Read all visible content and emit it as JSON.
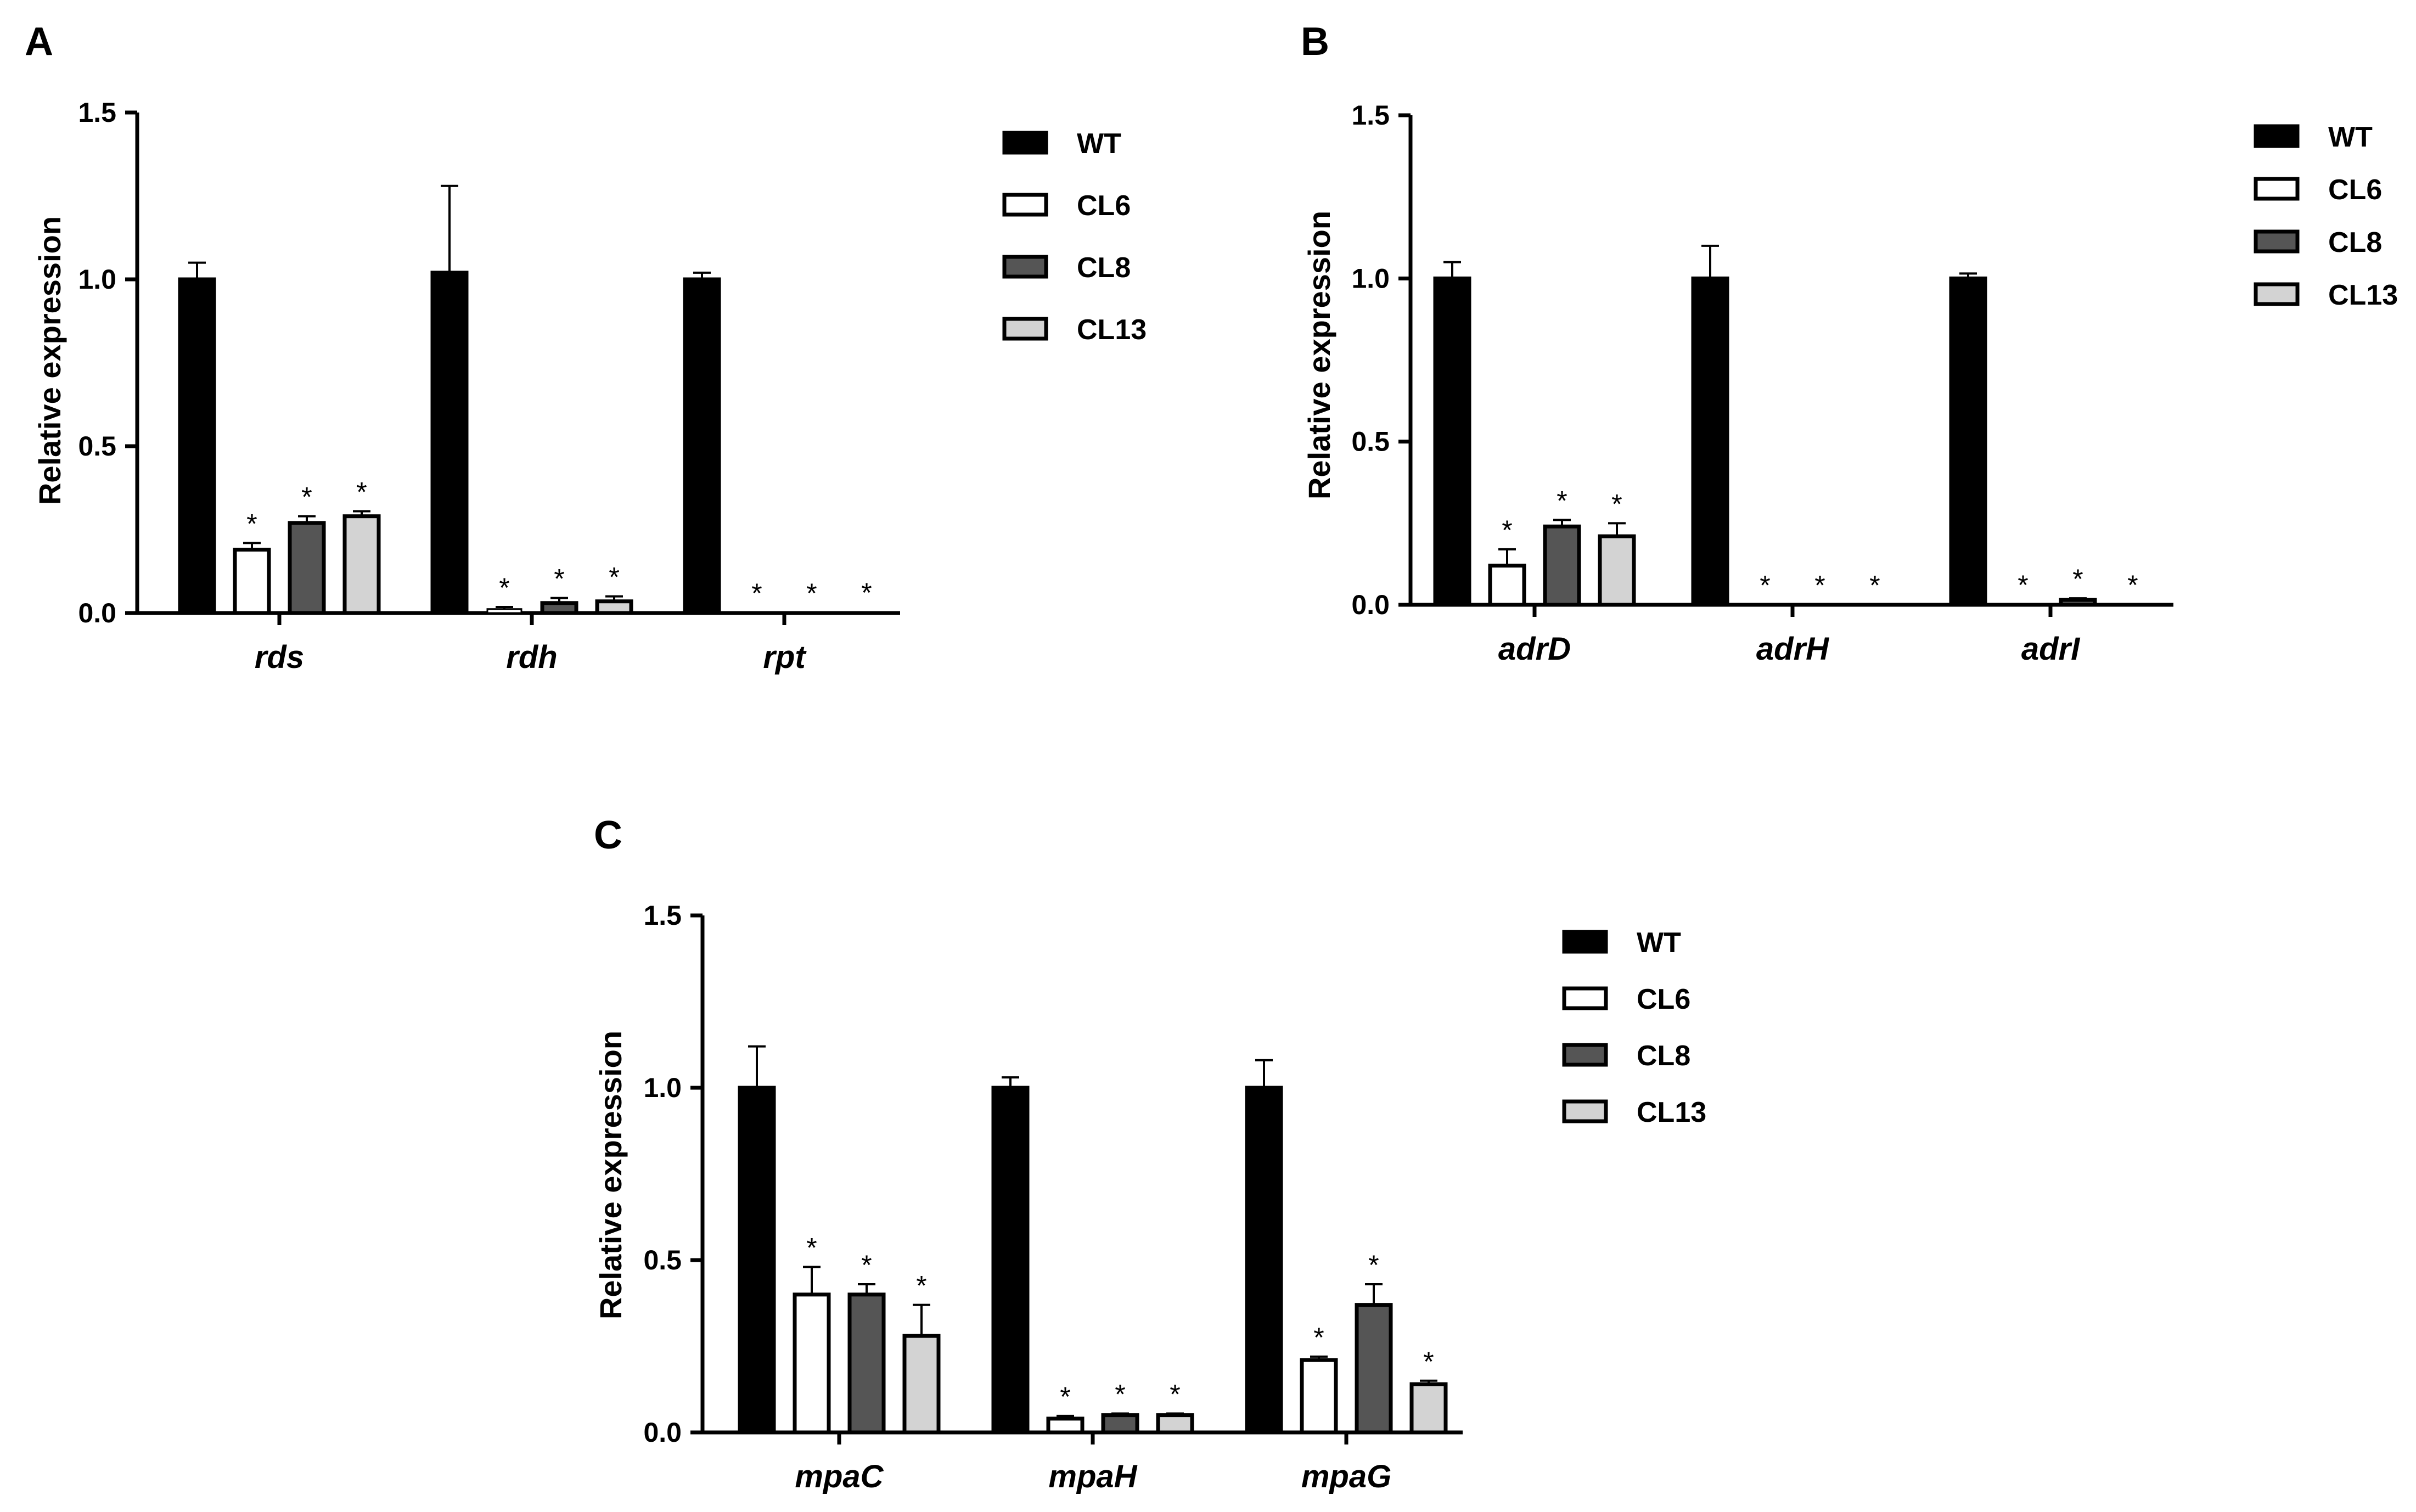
{
  "chart_data": [
    {
      "panel": "A",
      "type": "bar",
      "ylabel": "Relative expression",
      "ylim": [
        0,
        1.5
      ],
      "yticks": [
        "0.0",
        "0.5",
        "1.0",
        "1.5"
      ],
      "categories": [
        "rds",
        "rdh",
        "rpt"
      ],
      "legend_position": "right",
      "series": [
        {
          "name": "WT",
          "color": "#000000",
          "values": [
            1.0,
            1.02,
            1.0
          ],
          "errors": [
            0.05,
            0.26,
            0.02
          ],
          "significant": [
            false,
            false,
            false
          ]
        },
        {
          "name": "CL6",
          "color": "#ffffff",
          "values": [
            0.19,
            0.012,
            0.002
          ],
          "errors": [
            0.02,
            0.006,
            0.0
          ],
          "significant": [
            true,
            true,
            true
          ]
        },
        {
          "name": "CL8",
          "color": "#555555",
          "values": [
            0.27,
            0.03,
            0.002
          ],
          "errors": [
            0.02,
            0.015,
            0.0
          ],
          "significant": [
            true,
            true,
            true
          ]
        },
        {
          "name": "CL13",
          "color": "#d3d3d3",
          "values": [
            0.29,
            0.035,
            0.003
          ],
          "errors": [
            0.015,
            0.015,
            0.0
          ],
          "significant": [
            true,
            true,
            true
          ]
        }
      ]
    },
    {
      "panel": "B",
      "type": "bar",
      "ylabel": "Relative expression",
      "ylim": [
        0,
        1.5
      ],
      "yticks": [
        "0.0",
        "0.5",
        "1.0",
        "1.5"
      ],
      "categories": [
        "adrD",
        "adrH",
        "adrI"
      ],
      "legend_position": "right",
      "series": [
        {
          "name": "WT",
          "color": "#000000",
          "values": [
            1.0,
            1.0,
            1.0
          ],
          "errors": [
            0.05,
            0.1,
            0.015
          ],
          "significant": [
            false,
            false,
            false
          ]
        },
        {
          "name": "CL6",
          "color": "#ffffff",
          "values": [
            0.12,
            0.001,
            0.002
          ],
          "errors": [
            0.05,
            0.0,
            0.0
          ],
          "significant": [
            true,
            true,
            true
          ]
        },
        {
          "name": "CL8",
          "color": "#555555",
          "values": [
            0.24,
            0.001,
            0.015
          ],
          "errors": [
            0.02,
            0.0,
            0.005
          ],
          "significant": [
            true,
            true,
            true
          ]
        },
        {
          "name": "CL13",
          "color": "#d3d3d3",
          "values": [
            0.21,
            0.001,
            0.002
          ],
          "errors": [
            0.04,
            0.0,
            0.0
          ],
          "significant": [
            true,
            true,
            true
          ]
        }
      ]
    },
    {
      "panel": "C",
      "type": "bar",
      "ylabel": "Relative expression",
      "ylim": [
        0,
        1.5
      ],
      "yticks": [
        "0.0",
        "0.5",
        "1.0",
        "1.5"
      ],
      "categories": [
        "mpaC",
        "mpaH",
        "mpaG"
      ],
      "legend_position": "right",
      "series": [
        {
          "name": "WT",
          "color": "#000000",
          "values": [
            1.0,
            1.0,
            1.0
          ],
          "errors": [
            0.12,
            0.03,
            0.08
          ],
          "significant": [
            false,
            false,
            false
          ]
        },
        {
          "name": "CL6",
          "color": "#ffffff",
          "values": [
            0.4,
            0.04,
            0.21
          ],
          "errors": [
            0.08,
            0.008,
            0.01
          ],
          "significant": [
            true,
            true,
            true
          ]
        },
        {
          "name": "CL8",
          "color": "#555555",
          "values": [
            0.4,
            0.05,
            0.37
          ],
          "errors": [
            0.03,
            0.005,
            0.06
          ],
          "significant": [
            true,
            true,
            true
          ]
        },
        {
          "name": "CL13",
          "color": "#d3d3d3",
          "values": [
            0.28,
            0.05,
            0.14
          ],
          "errors": [
            0.09,
            0.005,
            0.01
          ],
          "significant": [
            true,
            true,
            true
          ]
        }
      ]
    }
  ],
  "significance_marker": "*"
}
